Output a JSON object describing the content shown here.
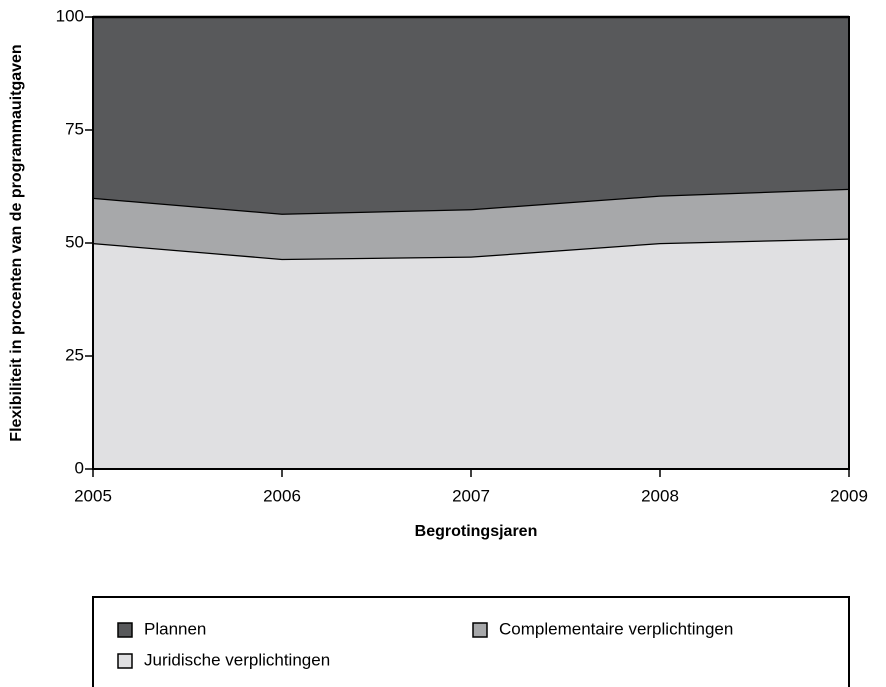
{
  "chart_data": {
    "type": "stacked_area",
    "x_label": "Begrotingsjaren",
    "y_label": "Flexibiliteit in procenten van de programmauitgaven",
    "x": [
      2005,
      2006,
      2007,
      2008,
      2009
    ],
    "xlim": [
      2005,
      2009
    ],
    "xticks": [
      2005,
      2006,
      2007,
      2008,
      2009
    ],
    "ylim": [
      0,
      100
    ],
    "yticks": [
      0,
      25,
      50,
      75,
      100
    ],
    "series": [
      {
        "name": "Plannen",
        "color": "#58595b",
        "values": [
          40,
          43.5,
          42.5,
          39.5,
          38
        ]
      },
      {
        "name": "Complementaire verplichtingen",
        "color": "#a7a8aa",
        "values": [
          10,
          10,
          10.5,
          10.5,
          11
        ]
      },
      {
        "name": "Juridische verplichtingen",
        "color": "#e0e0e2",
        "values": [
          50,
          46.5,
          47,
          50,
          51
        ]
      }
    ]
  }
}
